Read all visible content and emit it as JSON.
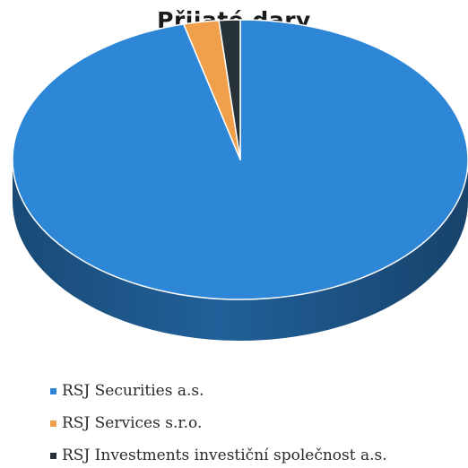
{
  "chart_data": {
    "type": "pie",
    "title": "Přijaté dary",
    "style": "3d",
    "legend_position": "bottom",
    "categories": [
      "RSJ Securities a.s.",
      "RSJ Services s.r.o.",
      "RSJ Investments investiční společnost a.s."
    ],
    "values": [
      96,
      2.5,
      1.5
    ],
    "colors": [
      "#2E86D6",
      "#F0A04B",
      "#263238"
    ]
  }
}
